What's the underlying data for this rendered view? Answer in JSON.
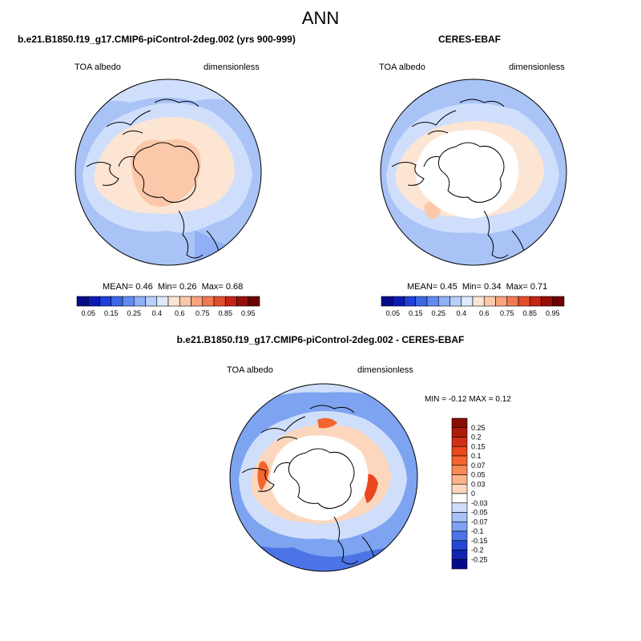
{
  "page": {
    "title": "ANN"
  },
  "panels": {
    "model": {
      "title": "b.e21.B1850.f19_g17.CMIP6-piControl-2deg.002 (yrs 900-999)",
      "variable": "TOA albedo",
      "units": "dimensionless",
      "stats": {
        "mean_label": "MEAN=",
        "mean": "0.46",
        "min_label": "Min=",
        "min": "0.26",
        "max_label": "Max=",
        "max": "0.68"
      }
    },
    "obs": {
      "title": "CERES-EBAF",
      "variable": "TOA albedo",
      "units": "dimensionless",
      "stats": {
        "mean_label": "MEAN=",
        "mean": "0.45",
        "min_label": "Min=",
        "min": "0.34",
        "max_label": "Max=",
        "max": "0.71"
      }
    },
    "diff": {
      "title": "b.e21.B1850.f19_g17.CMIP6-piControl-2deg.002 - CERES-EBAF",
      "variable": "TOA albedo",
      "units": "dimensionless",
      "stats": {
        "min_label": "MIN =",
        "min": "-0.12",
        "max_label": "MAX =",
        "max": "0.12"
      }
    }
  },
  "chart_data": [
    {
      "type": "heatmap",
      "projection": "north polar stereographic",
      "title": "b.e21.B1850.f19_g17.CMIP6-piControl-2deg.002 (yrs 900-999)",
      "variable": "TOA albedo",
      "units": "dimensionless",
      "mean": 0.46,
      "min": 0.26,
      "max": 0.68,
      "colorbar": {
        "levels": [
          0.05,
          0.1,
          0.15,
          0.2,
          0.25,
          0.3,
          0.4,
          0.5,
          0.6,
          0.65,
          0.75,
          0.8,
          0.85,
          0.9,
          0.95
        ],
        "tick_labels": [
          "0.05",
          "0.15",
          "0.25",
          "0.4",
          "0.6",
          "0.75",
          "0.85",
          "0.95"
        ],
        "colors": [
          "#0a0a8c",
          "#0c1ab4",
          "#1f3fd8",
          "#3b67e6",
          "#5f8cf0",
          "#8fb0f6",
          "#b9cffa",
          "#dfe9fd",
          "#fde5d4",
          "#fcc8aa",
          "#f9a47f",
          "#f27a52",
          "#e24e2c",
          "#c42414",
          "#961008",
          "#6e0000"
        ]
      }
    },
    {
      "type": "heatmap",
      "projection": "north polar stereographic",
      "title": "CERES-EBAF",
      "variable": "TOA albedo",
      "units": "dimensionless",
      "mean": 0.45,
      "min": 0.34,
      "max": 0.71,
      "colorbar": {
        "levels": [
          0.05,
          0.1,
          0.15,
          0.2,
          0.25,
          0.3,
          0.4,
          0.5,
          0.6,
          0.65,
          0.75,
          0.8,
          0.85,
          0.9,
          0.95
        ],
        "tick_labels": [
          "0.05",
          "0.15",
          "0.25",
          "0.4",
          "0.6",
          "0.75",
          "0.85",
          "0.95"
        ],
        "colors": [
          "#0a0a8c",
          "#0c1ab4",
          "#1f3fd8",
          "#3b67e6",
          "#5f8cf0",
          "#8fb0f6",
          "#b9cffa",
          "#dfe9fd",
          "#fde5d4",
          "#fcc8aa",
          "#f9a47f",
          "#f27a52",
          "#e24e2c",
          "#c42414",
          "#961008",
          "#6e0000"
        ]
      }
    },
    {
      "type": "heatmap",
      "projection": "north polar stereographic",
      "title": "b.e21.B1850.f19_g17.CMIP6-piControl-2deg.002 - CERES-EBAF",
      "variable": "TOA albedo",
      "units": "dimensionless",
      "min": -0.12,
      "max": 0.12,
      "colorbar": {
        "orientation": "vertical",
        "labels": [
          "0.25",
          "0.2",
          "0.15",
          "0.1",
          "0.07",
          "0.05",
          "0.03",
          "0",
          "-0.03",
          "-0.05",
          "-0.07",
          "-0.1",
          "-0.15",
          "-0.2",
          "-0.25"
        ],
        "colors": [
          "#8a0d05",
          "#b01a0b",
          "#cf2f14",
          "#e9481f",
          "#f3652f",
          "#f78a55",
          "#fab38d",
          "#fcd7bd",
          "#ffffff",
          "#cfdefb",
          "#a9c3f7",
          "#7da3f1",
          "#4c74e6",
          "#2547d4",
          "#1125b0",
          "#06098a"
        ]
      }
    }
  ]
}
